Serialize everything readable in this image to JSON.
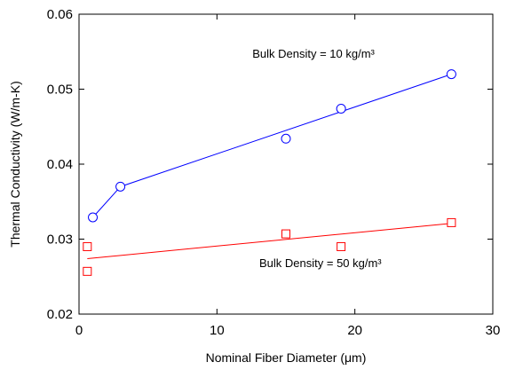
{
  "chart_data": {
    "type": "scatter",
    "xlabel": "Nominal Fiber Diameter (μm)",
    "ylabel": "Thermal Conductivity (W/m-K)",
    "xlim": [
      0,
      30
    ],
    "ylim": [
      0.02,
      0.06
    ],
    "x_ticks": [
      0,
      10,
      20,
      30
    ],
    "y_ticks": [
      0.02,
      0.03,
      0.04,
      0.05,
      0.06
    ],
    "x_tick_labels": [
      "0",
      "10",
      "20",
      "30"
    ],
    "y_tick_labels": [
      "0.02",
      "0.03",
      "0.04",
      "0.05",
      "0.06"
    ],
    "grid": false,
    "series": [
      {
        "marker": "circle",
        "color": "#0000ff",
        "points": [
          {
            "x": 1.0,
            "y": 0.0329
          },
          {
            "x": 3.0,
            "y": 0.037
          },
          {
            "x": 15.0,
            "y": 0.0434
          },
          {
            "x": 19.0,
            "y": 0.0474
          },
          {
            "x": 27.0,
            "y": 0.052
          }
        ],
        "line": [
          {
            "x": 1.0,
            "y": 0.0329
          },
          {
            "x": 3.0,
            "y": 0.037
          },
          {
            "x": 27.0,
            "y": 0.052
          }
        ]
      },
      {
        "marker": "square",
        "color": "#ff0000",
        "points": [
          {
            "x": 0.6,
            "y": 0.029
          },
          {
            "x": 0.6,
            "y": 0.0257
          },
          {
            "x": 15.0,
            "y": 0.0307
          },
          {
            "x": 19.0,
            "y": 0.029
          },
          {
            "x": 27.0,
            "y": 0.0322
          }
        ],
        "line": [
          {
            "x": 0.6,
            "y": 0.0274
          },
          {
            "x": 27.0,
            "y": 0.0321
          }
        ]
      }
    ],
    "annotations": [
      {
        "text": "Bulk Density = 10 kg/m³",
        "x": 17,
        "y": 0.0542,
        "color": "#000000"
      },
      {
        "text": "Bulk Density = 50 kg/m³",
        "x": 17.5,
        "y": 0.0263,
        "color": "#000000"
      }
    ]
  }
}
